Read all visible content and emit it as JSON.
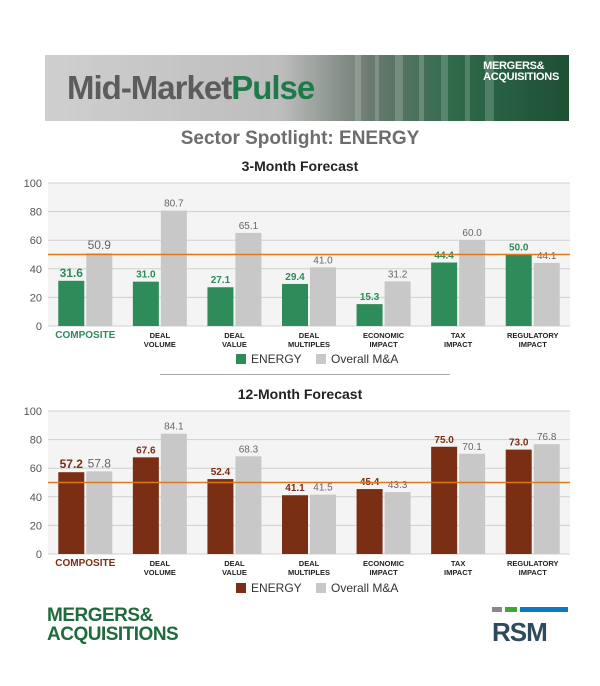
{
  "banner": {
    "title_part1": "Mid-Market",
    "title_part2": "Pulse",
    "logo_line1": "MERGERS&",
    "logo_line2": "ACQUISITIONS"
  },
  "sector_title": "Sector Spotlight: ENERGY",
  "colors": {
    "energy_3m": "#2e8b5a",
    "energy_12m": "#7a2e14",
    "overall": "#c8c8c8",
    "threshold_line": "#d97a1c",
    "composite_label_3m": "#2e8b5a",
    "composite_label_12m": "#7a2e14"
  },
  "chart_data": [
    {
      "type": "bar",
      "title": "3-Month Forecast",
      "categories": [
        "COMPOSITE",
        "DEAL|VOLUME",
        "DEAL|VALUE",
        "DEAL|MULTIPLES",
        "ECONOMIC|IMPACT",
        "TAX|IMPACT",
        "REGULATORY|IMPACT"
      ],
      "series": [
        {
          "name": "ENERGY",
          "values": [
            31.6,
            31.0,
            27.1,
            29.4,
            15.3,
            44.4,
            50.0
          ]
        },
        {
          "name": "Overall M&A",
          "values": [
            50.9,
            80.7,
            65.1,
            41.0,
            31.2,
            60.0,
            44.1
          ]
        }
      ],
      "value_labels": {
        "ENERGY": [
          "31.6",
          "31.0",
          "27.1",
          "29.4",
          "15.3",
          "44.4",
          "50.0"
        ],
        "Overall M&A": [
          "50.9",
          "80.7",
          "65.1",
          "41.0",
          "31.2",
          "60.0",
          "44.1"
        ]
      },
      "yticks": [
        "0",
        "20",
        "40",
        "60",
        "80",
        "100"
      ],
      "ylim": [
        0,
        100
      ],
      "reference_line": 50,
      "grid": true,
      "legend": "bottom"
    },
    {
      "type": "bar",
      "title": "12-Month Forecast",
      "categories": [
        "COMPOSITE",
        "DEAL|VOLUME",
        "DEAL|VALUE",
        "DEAL|MULTIPLES",
        "ECONOMIC|IMPACT",
        "TAX|IMPACT",
        "REGULATORY|IMPACT"
      ],
      "series": [
        {
          "name": "ENERGY",
          "values": [
            57.2,
            67.6,
            52.4,
            41.1,
            45.4,
            75.0,
            73.0
          ]
        },
        {
          "name": "Overall M&A",
          "values": [
            57.8,
            84.1,
            68.3,
            41.5,
            43.3,
            70.1,
            76.8
          ]
        }
      ],
      "value_labels": {
        "ENERGY": [
          "57.2",
          "67.6",
          "52.4",
          "41.1",
          "45.4",
          "75.0",
          "73.0"
        ],
        "Overall M&A": [
          "57.8",
          "84.1",
          "68.3",
          "41.5",
          "43.3",
          "70.1",
          "76.8"
        ]
      },
      "yticks": [
        "0",
        "20",
        "40",
        "60",
        "80",
        "100"
      ],
      "ylim": [
        0,
        100
      ],
      "reference_line": 50,
      "grid": true,
      "legend": "bottom"
    }
  ],
  "footer": {
    "logo_line1": "MERGERS&",
    "logo_line2": "ACQUISITIONS",
    "rsm": "RSM",
    "rsm_bar_colors": [
      "#888888",
      "#3aaa35",
      "#0a7bbf"
    ]
  }
}
